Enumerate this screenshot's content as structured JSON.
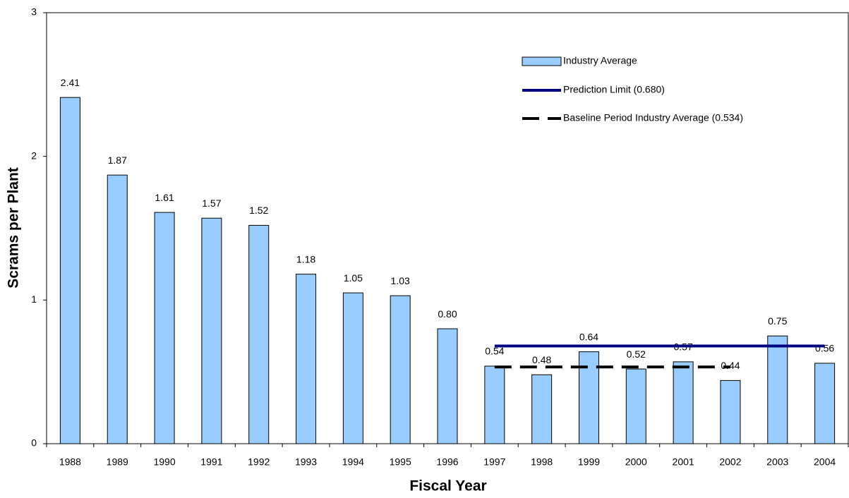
{
  "chart_data": {
    "type": "bar",
    "categories": [
      "1988",
      "1989",
      "1990",
      "1991",
      "1992",
      "1993",
      "1994",
      "1995",
      "1996",
      "1997",
      "1998",
      "1999",
      "2000",
      "2001",
      "2002",
      "2003",
      "2004"
    ],
    "series": [
      {
        "name": "Industry Average",
        "type": "bar",
        "color": "#99ccff",
        "values": [
          2.41,
          1.87,
          1.61,
          1.57,
          1.52,
          1.18,
          1.05,
          1.03,
          0.8,
          0.54,
          0.48,
          0.64,
          0.52,
          0.57,
          0.44,
          0.75,
          0.56
        ],
        "value_labels": [
          "2.41",
          "1.87",
          "1.61",
          "1.57",
          "1.52",
          "1.18",
          "1.05",
          "1.03",
          "0.80",
          "0.54",
          "0.48",
          "0.64",
          "0.52",
          "0.57",
          "0.44",
          "0.75",
          "0.56"
        ]
      },
      {
        "name": "Prediction Limit (0.680)",
        "type": "line",
        "style": "solid",
        "color": "#000080",
        "values": [
          null,
          null,
          null,
          null,
          null,
          null,
          null,
          null,
          null,
          0.68,
          0.68,
          0.68,
          0.68,
          0.68,
          0.68,
          0.68,
          0.68
        ]
      },
      {
        "name": "Baseline Period Industry Average (0.534)",
        "type": "line",
        "style": "dashed",
        "color": "#000000",
        "values": [
          null,
          null,
          null,
          null,
          null,
          null,
          null,
          null,
          null,
          0.534,
          0.534,
          0.534,
          0.534,
          0.534,
          0.534,
          null,
          null
        ]
      }
    ],
    "ylabel": "Scrams per Plant",
    "xlabel": "Fiscal Year",
    "ylim": [
      0,
      3
    ],
    "yticks": [
      0,
      1,
      2,
      3
    ],
    "grid": false
  }
}
